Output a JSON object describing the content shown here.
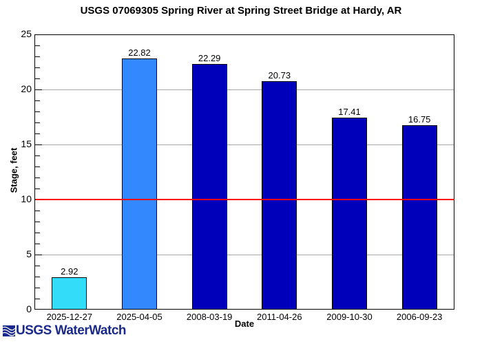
{
  "chart_data": {
    "type": "bar",
    "title": "USGS 07069305 Spring River at Spring Street Bridge at Hardy, AR",
    "xlabel": "Date",
    "ylabel": "Stage, feet",
    "ylim": [
      0,
      25
    ],
    "yticks": [
      0,
      5,
      10,
      15,
      20,
      25
    ],
    "grid": true,
    "categories": [
      "2025-12-27",
      "2025-04-05",
      "2008-03-19",
      "2011-04-26",
      "2009-10-30",
      "2006-09-23"
    ],
    "values": [
      2.92,
      22.82,
      22.29,
      20.73,
      17.41,
      16.75
    ],
    "value_labels": [
      "2.92",
      "22.82",
      "22.29",
      "20.73",
      "17.41",
      "16.75"
    ],
    "bar_colors": [
      "#33ddf9",
      "#3388fd",
      "#0000bb",
      "#0000bb",
      "#0000bb",
      "#0000bb"
    ],
    "reference_line": {
      "value": 10,
      "color": "#ff0000"
    }
  },
  "branding": {
    "logo_text": "USGS WaterWatch",
    "logo_color": "#1a2a8c"
  }
}
